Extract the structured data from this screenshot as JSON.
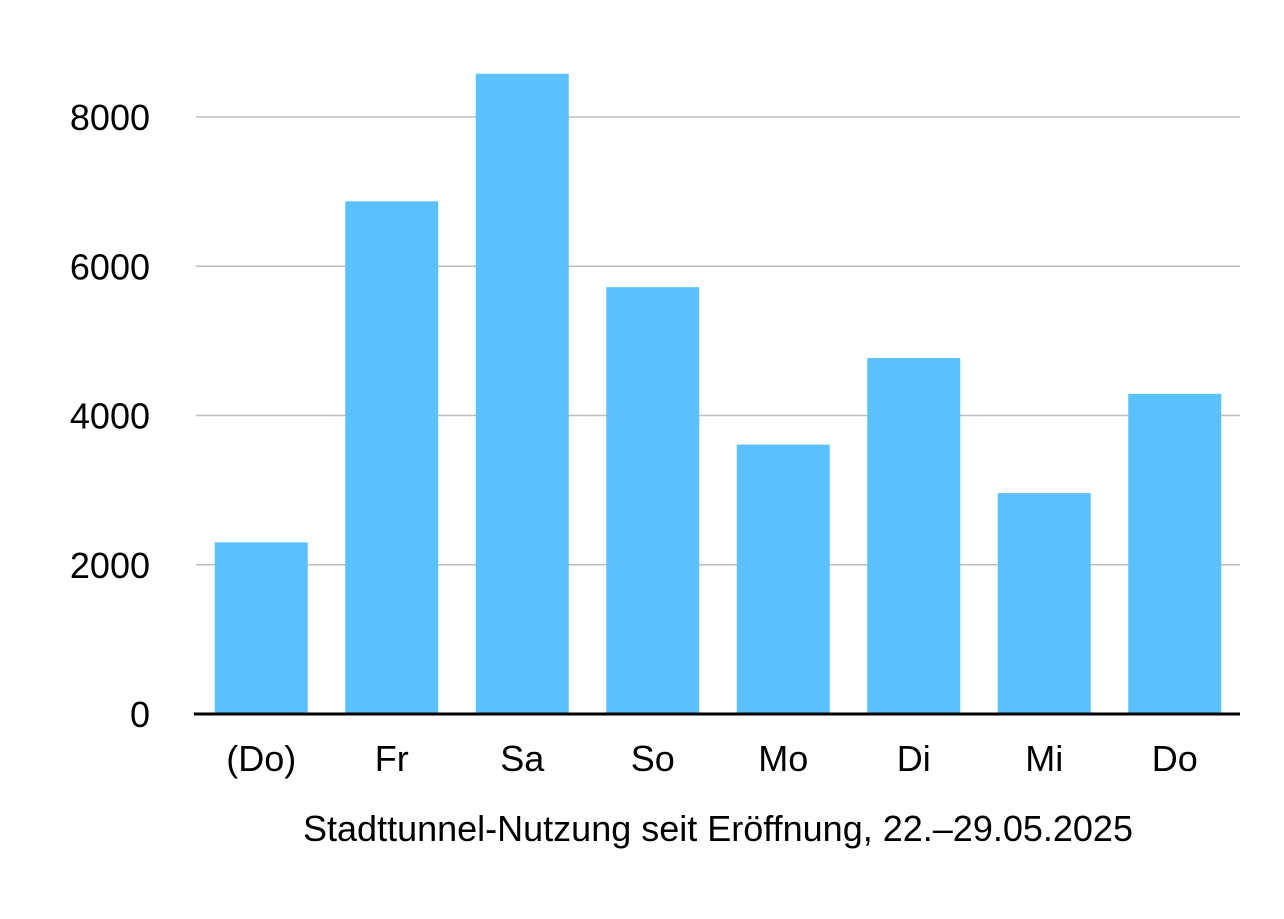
{
  "chart_data": {
    "type": "bar",
    "categories": [
      "(Do)",
      "Fr",
      "Sa",
      "So",
      "Mo",
      "Di",
      "Mi",
      "Do"
    ],
    "values": [
      2300,
      6870,
      8580,
      5720,
      3610,
      4770,
      2960,
      4290
    ],
    "title": "",
    "xlabel": "Stadttunnel-Nutzung seit Eröffnung, 22.–29.05.2025",
    "ylabel": "",
    "ylim": [
      0,
      8700
    ],
    "yticks": [
      0,
      2000,
      4000,
      6000,
      8000
    ],
    "ytick_labels": [
      "0",
      "2000",
      "4000",
      "6000",
      "8000"
    ],
    "grid": true,
    "legend": "none",
    "colors": {
      "bar": "#5AC1FC",
      "grid": "#BDBDBD",
      "axis": "#000000"
    }
  }
}
